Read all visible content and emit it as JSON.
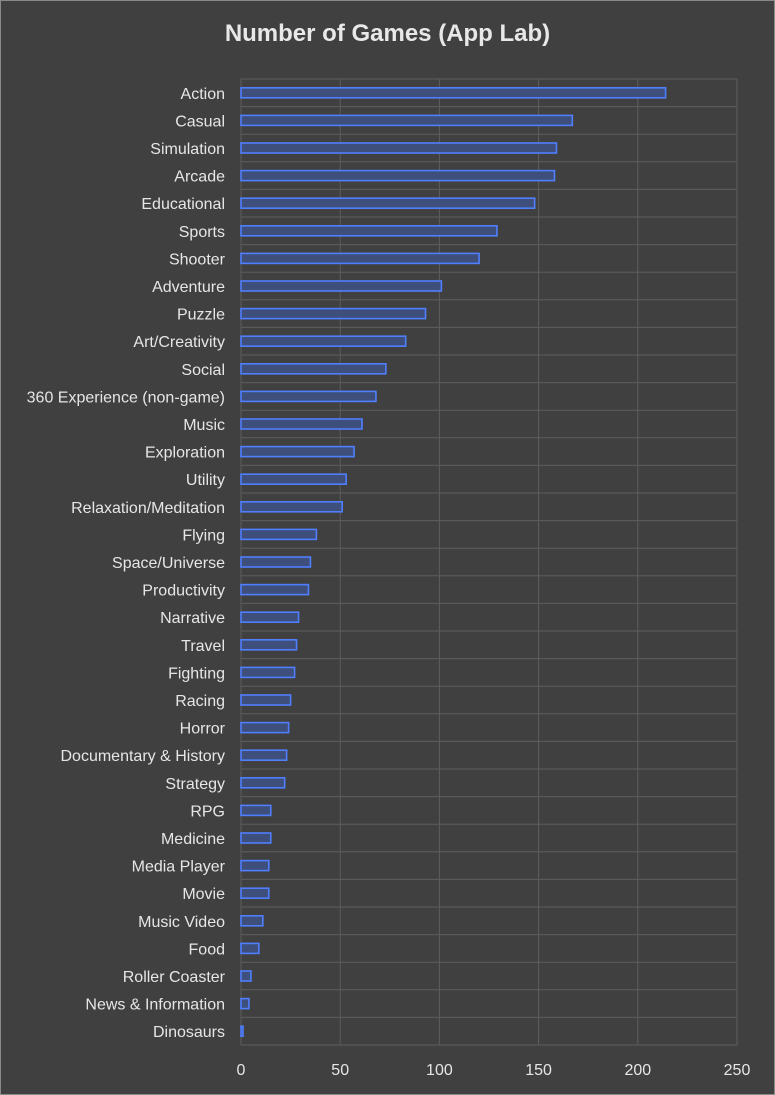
{
  "chart_data": {
    "type": "bar",
    "orientation": "horizontal",
    "title": "Number of Games (App Lab)",
    "xlabel": "",
    "ylabel": "",
    "xlim": [
      0,
      250
    ],
    "x_ticks": [
      0,
      50,
      100,
      150,
      200,
      250
    ],
    "grid": true,
    "colors": {
      "background": "#404040",
      "bar_fill": "#3d4f7a",
      "bar_edge": "#4f7fff",
      "grid": "#5e5e5e",
      "text": "#e6e6e6"
    },
    "categories": [
      "Action",
      "Casual",
      "Simulation",
      "Arcade",
      "Educational",
      "Sports",
      "Shooter",
      "Adventure",
      "Puzzle",
      "Art/Creativity",
      "Social",
      "360 Experience (non-game)",
      "Music",
      "Exploration",
      "Utility",
      "Relaxation/Meditation",
      "Flying",
      "Space/Universe",
      "Productivity",
      "Narrative",
      "Travel",
      "Fighting",
      "Racing",
      "Horror",
      "Documentary & History",
      "Strategy",
      "RPG",
      "Medicine",
      "Media Player",
      "Movie",
      "Music Video",
      "Food",
      "Roller Coaster",
      "News & Information",
      "Dinosaurs"
    ],
    "values": [
      214,
      167,
      159,
      158,
      148,
      129,
      120,
      101,
      93,
      83,
      73,
      68,
      61,
      57,
      53,
      51,
      38,
      35,
      34,
      29,
      28,
      27,
      25,
      24,
      23,
      22,
      15,
      15,
      14,
      14,
      11,
      9,
      5,
      4,
      1
    ]
  }
}
